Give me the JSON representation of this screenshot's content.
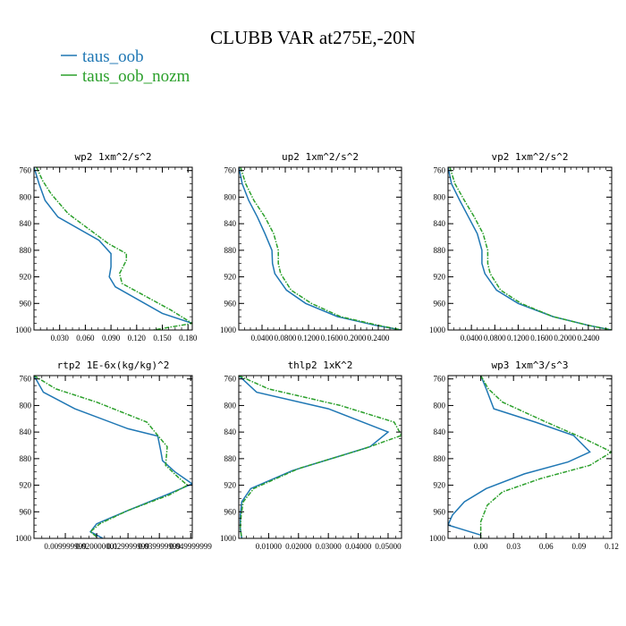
{
  "figure": {
    "title": "CLUBB VAR at275E,-20N",
    "legend": [
      {
        "label": "taus_oob",
        "color": "#1f77b4"
      },
      {
        "label": "taus_oob_nozm",
        "color": "#2ca02c"
      }
    ]
  },
  "chart_data": [
    {
      "type": "line",
      "title": "wp2  1xm^2/s^2",
      "xlim": [
        0.0,
        0.185
      ],
      "ylim": [
        755,
        1000
      ],
      "y_inverted": true,
      "xticks": [
        0.03,
        0.06,
        0.09,
        0.12,
        0.15,
        0.18
      ],
      "xtick_labels": [
        "0.030",
        "0.060",
        "0.090",
        "0.120",
        "0.150",
        "0.180"
      ],
      "yticks": [
        760,
        800,
        840,
        880,
        920,
        960,
        1000
      ],
      "ytick_labels": [
        "760",
        "800",
        "840",
        "880",
        "920",
        "960",
        "1000"
      ],
      "series": [
        {
          "name": "taus_oob",
          "color": "#1f77b4",
          "x": [
            0.0,
            0.006,
            0.013,
            0.028,
            0.076,
            0.09,
            0.09,
            0.088,
            0.095,
            0.15,
            0.185
          ],
          "y": [
            755,
            780,
            805,
            830,
            865,
            885,
            905,
            920,
            935,
            975,
            990
          ]
        },
        {
          "name": "taus_oob_nozm",
          "color": "#2ca02c",
          "x": [
            0.003,
            0.01,
            0.02,
            0.04,
            0.087,
            0.108,
            0.108,
            0.1,
            0.103,
            0.16,
            0.185,
            0.14
          ],
          "y": [
            755,
            775,
            795,
            825,
            870,
            885,
            895,
            915,
            930,
            970,
            990,
            1000
          ]
        }
      ]
    },
    {
      "type": "line",
      "title": "up2  1xm^2/s^2",
      "xlim": [
        0.0,
        0.28
      ],
      "ylim": [
        755,
        1000
      ],
      "y_inverted": true,
      "xticks": [
        0.04,
        0.08,
        0.12,
        0.16,
        0.2,
        0.24
      ],
      "xtick_labels": [
        "0.0400",
        "0.0800",
        "0.1200",
        "0.1600",
        "0.2000",
        "0.2400"
      ],
      "yticks": [
        760,
        800,
        840,
        880,
        920,
        960,
        1000
      ],
      "ytick_labels": [
        "760",
        "800",
        "840",
        "880",
        "920",
        "960",
        "1000"
      ],
      "series": [
        {
          "name": "taus_oob",
          "color": "#1f77b4",
          "x": [
            0.0,
            0.006,
            0.017,
            0.032,
            0.045,
            0.057,
            0.058,
            0.062,
            0.082,
            0.115,
            0.17,
            0.235,
            0.28
          ],
          "y": [
            755,
            780,
            805,
            830,
            855,
            880,
            900,
            915,
            940,
            960,
            980,
            993,
            1000
          ]
        },
        {
          "name": "taus_oob_nozm",
          "color": "#2ca02c",
          "x": [
            0.003,
            0.012,
            0.026,
            0.045,
            0.06,
            0.068,
            0.068,
            0.072,
            0.09,
            0.125,
            0.175,
            0.24,
            0.28
          ],
          "y": [
            755,
            780,
            805,
            830,
            855,
            880,
            900,
            915,
            940,
            960,
            980,
            993,
            1000
          ]
        }
      ]
    },
    {
      "type": "line",
      "title": "vp2  1xm^2/s^2",
      "xlim": [
        0.0,
        0.28
      ],
      "ylim": [
        755,
        1000
      ],
      "y_inverted": true,
      "xticks": [
        0.04,
        0.08,
        0.12,
        0.16,
        0.2,
        0.24
      ],
      "xtick_labels": [
        "0.0400",
        "0.0800",
        "0.1200",
        "0.1600",
        "0.2000",
        "0.2400"
      ],
      "yticks": [
        760,
        800,
        840,
        880,
        920,
        960,
        1000
      ],
      "ytick_labels": [
        "760",
        "800",
        "840",
        "880",
        "920",
        "960",
        "1000"
      ],
      "series": [
        {
          "name": "taus_oob",
          "color": "#1f77b4",
          "x": [
            0.0,
            0.006,
            0.02,
            0.035,
            0.05,
            0.058,
            0.058,
            0.063,
            0.083,
            0.12,
            0.18,
            0.24,
            0.28
          ],
          "y": [
            755,
            780,
            805,
            830,
            855,
            880,
            900,
            915,
            940,
            960,
            980,
            993,
            1000
          ]
        },
        {
          "name": "taus_oob_nozm",
          "color": "#2ca02c",
          "x": [
            0.003,
            0.012,
            0.028,
            0.045,
            0.06,
            0.068,
            0.068,
            0.072,
            0.09,
            0.125,
            0.18,
            0.24,
            0.28
          ],
          "y": [
            755,
            780,
            805,
            830,
            855,
            880,
            900,
            915,
            940,
            960,
            980,
            993,
            1000
          ]
        }
      ]
    },
    {
      "type": "line",
      "title": "rtp2  1E-6x(kg/kg)^2",
      "xlim": [
        0.0,
        0.0505
      ],
      "ylim": [
        755,
        1000
      ],
      "y_inverted": true,
      "xticks": [
        0.01,
        0.02,
        0.03,
        0.04,
        0.05
      ],
      "xtick_labels": [
        "0.009999999",
        "0.020000001",
        "0.029999999",
        "0.039999999",
        "0.049999999"
      ],
      "yticks": [
        760,
        800,
        840,
        880,
        920,
        960,
        1000
      ],
      "ytick_labels": [
        "760",
        "800",
        "840",
        "880",
        "920",
        "960",
        "1000"
      ],
      "series": [
        {
          "name": "taus_oob",
          "color": "#1f77b4",
          "x": [
            0.0,
            0.003,
            0.013,
            0.03,
            0.0395,
            0.0405,
            0.041,
            0.045,
            0.0505,
            0.042,
            0.03,
            0.02,
            0.018,
            0.022
          ],
          "y": [
            755,
            780,
            805,
            835,
            846,
            870,
            883,
            900,
            918,
            935,
            958,
            978,
            990,
            1000
          ]
        },
        {
          "name": "taus_oob_nozm",
          "color": "#2ca02c",
          "x": [
            0.0,
            0.007,
            0.02,
            0.036,
            0.0395,
            0.0425,
            0.042,
            0.046,
            0.049,
            0.043,
            0.03,
            0.021,
            0.018,
            0.02
          ],
          "y": [
            755,
            775,
            795,
            825,
            845,
            862,
            890,
            908,
            920,
            935,
            958,
            978,
            990,
            998
          ]
        }
      ]
    },
    {
      "type": "line",
      "title": "thlp2  1xK^2",
      "xlim": [
        0.0,
        0.0545
      ],
      "ylim": [
        755,
        1000
      ],
      "y_inverted": true,
      "xticks": [
        0.01,
        0.02,
        0.03,
        0.04,
        0.05
      ],
      "xtick_labels": [
        "0.01000",
        "0.02000",
        "0.03000",
        "0.04000",
        "0.05000"
      ],
      "yticks": [
        760,
        800,
        840,
        880,
        920,
        960,
        1000
      ],
      "ytick_labels": [
        "760",
        "800",
        "840",
        "880",
        "920",
        "960",
        "1000"
      ],
      "series": [
        {
          "name": "taus_oob",
          "color": "#1f77b4",
          "x": [
            0.0,
            0.006,
            0.03,
            0.05,
            0.044,
            0.018,
            0.004,
            0.001,
            0.0005,
            0.0005,
            0.001
          ],
          "y": [
            755,
            780,
            805,
            840,
            862,
            898,
            925,
            945,
            965,
            985,
            1000
          ]
        },
        {
          "name": "taus_oob_nozm",
          "color": "#2ca02c",
          "x": [
            0.0,
            0.01,
            0.034,
            0.052,
            0.0545,
            0.042,
            0.02,
            0.005,
            0.0015,
            0.0008,
            0.0005,
            0.001
          ],
          "y": [
            755,
            775,
            800,
            825,
            845,
            865,
            895,
            925,
            945,
            965,
            985,
            1000
          ]
        }
      ]
    },
    {
      "type": "line",
      "title": "wp3  1xm^3/s^3",
      "xlim": [
        -0.03,
        0.12
      ],
      "ylim": [
        755,
        1000
      ],
      "y_inverted": true,
      "xticks": [
        0.0,
        0.03,
        0.06,
        0.09,
        0.12
      ],
      "xtick_labels": [
        "0.00",
        "0.03",
        "0.06",
        "0.09",
        "0.12"
      ],
      "yticks": [
        760,
        800,
        840,
        880,
        920,
        960,
        1000
      ],
      "ytick_labels": [
        "760",
        "800",
        "840",
        "880",
        "920",
        "960",
        "1000"
      ],
      "series": [
        {
          "name": "taus_oob",
          "color": "#1f77b4",
          "x": [
            0.0,
            0.005,
            0.012,
            0.05,
            0.085,
            0.1,
            0.08,
            0.04,
            0.005,
            -0.015,
            -0.026,
            -0.03,
            0.0
          ],
          "y": [
            755,
            775,
            805,
            825,
            845,
            870,
            885,
            903,
            925,
            945,
            965,
            980,
            995
          ]
        },
        {
          "name": "taus_oob_nozm",
          "color": "#2ca02c",
          "x": [
            0.0,
            0.007,
            0.02,
            0.06,
            0.095,
            0.12,
            0.1,
            0.055,
            0.02,
            0.006,
            0.0,
            0.0
          ],
          "y": [
            755,
            775,
            795,
            825,
            850,
            870,
            890,
            910,
            930,
            950,
            975,
            1000
          ]
        }
      ]
    }
  ]
}
